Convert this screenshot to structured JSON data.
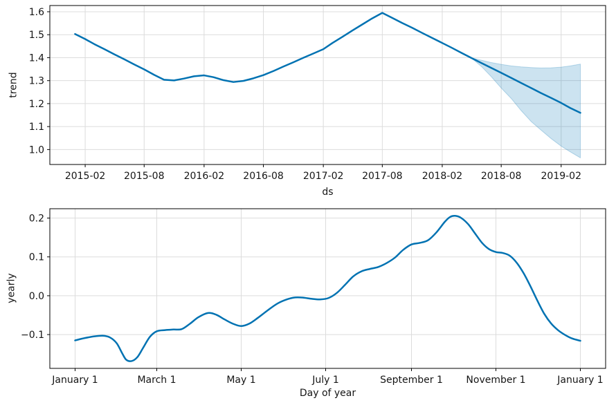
{
  "figure": {
    "background": "#ffffff",
    "line_color": "#0072B2",
    "band_fill": "rgba(0,114,178,0.2)",
    "band_edge": "rgba(0,114,178,0.25)",
    "grid_color": "#dcdcdc",
    "spine_color": "#000000",
    "tick_color": "#000000",
    "text_color": "#151515"
  },
  "chart_data": [
    {
      "id": "trend",
      "type": "line",
      "title": "",
      "xlabel": "ds",
      "ylabel": "trend",
      "x_unit": "days since 2015-01-01, monthly points from 2015-01 to 2019-04",
      "xlim": [
        -77.5,
        1628.5
      ],
      "ylim": [
        0.935,
        1.627
      ],
      "grid": true,
      "legend": null,
      "x_ticks": [
        {
          "x": 31,
          "label": "2015-02"
        },
        {
          "x": 212,
          "label": "2015-08"
        },
        {
          "x": 396,
          "label": "2016-02"
        },
        {
          "x": 578,
          "label": "2016-08"
        },
        {
          "x": 762,
          "label": "2017-02"
        },
        {
          "x": 943,
          "label": "2017-08"
        },
        {
          "x": 1127,
          "label": "2018-02"
        },
        {
          "x": 1308,
          "label": "2018-08"
        },
        {
          "x": 1492,
          "label": "2019-02"
        }
      ],
      "y_ticks": [
        {
          "y": 1.0,
          "label": "1.0"
        },
        {
          "y": 1.1,
          "label": "1.1"
        },
        {
          "y": 1.2,
          "label": "1.2"
        },
        {
          "y": 1.3,
          "label": "1.3"
        },
        {
          "y": 1.4,
          "label": "1.4"
        },
        {
          "y": 1.5,
          "label": "1.5"
        },
        {
          "y": 1.6,
          "label": "1.6"
        }
      ],
      "series": [
        {
          "name": "trend",
          "smooth": false,
          "x": [
            0,
            31,
            59,
            90,
            120,
            151,
            181,
            212,
            243,
            273,
            304,
            334,
            365,
            396,
            425,
            456,
            486,
            517,
            547,
            578,
            609,
            639,
            670,
            700,
            731,
            762,
            790,
            821,
            851,
            882,
            912,
            943,
            974,
            1004,
            1035,
            1065,
            1096,
            1127,
            1155,
            1186,
            1216,
            1247,
            1277,
            1308,
            1339,
            1369,
            1400,
            1430,
            1461,
            1492,
            1520,
            1551
          ],
          "y": [
            1.503,
            1.481,
            1.459,
            1.437,
            1.415,
            1.393,
            1.371,
            1.349,
            1.325,
            1.304,
            1.301,
            1.309,
            1.319,
            1.323,
            1.315,
            1.302,
            1.294,
            1.299,
            1.31,
            1.324,
            1.342,
            1.361,
            1.38,
            1.399,
            1.418,
            1.437,
            1.464,
            1.491,
            1.518,
            1.545,
            1.571,
            1.595,
            1.573,
            1.551,
            1.53,
            1.508,
            1.486,
            1.464,
            1.444,
            1.421,
            1.399,
            1.377,
            1.356,
            1.334,
            1.312,
            1.29,
            1.268,
            1.246,
            1.225,
            1.203,
            1.181,
            1.16
          ]
        }
      ],
      "band": {
        "name": "uncertainty-interval",
        "x": [
          1216,
          1247,
          1277,
          1308,
          1339,
          1369,
          1400,
          1430,
          1461,
          1492,
          1520,
          1551
        ],
        "upper": [
          1.399,
          1.389,
          1.379,
          1.371,
          1.364,
          1.36,
          1.357,
          1.355,
          1.356,
          1.359,
          1.364,
          1.372
        ],
        "lower": [
          1.399,
          1.362,
          1.318,
          1.268,
          1.222,
          1.17,
          1.122,
          1.085,
          1.048,
          1.015,
          0.99,
          0.964
        ]
      }
    },
    {
      "id": "yearly",
      "type": "line",
      "title": "",
      "xlabel": "Day of year",
      "ylabel": "yearly",
      "x_unit": "day of year",
      "xlim": [
        -17.25,
        384.25
      ],
      "ylim": [
        -0.187,
        0.224
      ],
      "grid": true,
      "legend": null,
      "x_ticks": [
        {
          "x": 1,
          "label": "January 1"
        },
        {
          "x": 60,
          "label": "March 1"
        },
        {
          "x": 121,
          "label": "May 1"
        },
        {
          "x": 182,
          "label": "July 1"
        },
        {
          "x": 244,
          "label": "September 1"
        },
        {
          "x": 305,
          "label": "November 1"
        },
        {
          "x": 366,
          "label": "January 1"
        }
      ],
      "y_ticks": [
        {
          "y": -0.1,
          "label": "−0.1"
        },
        {
          "y": 0.0,
          "label": "0.0"
        },
        {
          "y": 0.1,
          "label": "0.1"
        },
        {
          "y": 0.2,
          "label": "0.2"
        }
      ],
      "series": [
        {
          "name": "yearly",
          "smooth": true,
          "x": [
            1,
            8,
            15,
            21,
            26,
            31,
            35,
            38,
            42,
            46,
            50,
            55,
            60,
            66,
            72,
            78,
            84,
            90,
            97,
            103,
            109,
            115,
            121,
            127,
            133,
            140,
            147,
            154,
            160,
            166,
            172,
            178,
            184,
            190,
            196,
            202,
            208,
            214,
            220,
            226,
            232,
            238,
            244,
            250,
            256,
            262,
            268,
            272,
            276,
            280,
            285,
            290,
            295,
            300,
            305,
            310,
            315,
            320,
            325,
            330,
            335,
            340,
            345,
            350,
            355,
            360,
            366
          ],
          "y": [
            -0.115,
            -0.109,
            -0.1045,
            -0.103,
            -0.107,
            -0.122,
            -0.148,
            -0.165,
            -0.168,
            -0.158,
            -0.135,
            -0.106,
            -0.0915,
            -0.0885,
            -0.087,
            -0.086,
            -0.072,
            -0.0555,
            -0.0445,
            -0.049,
            -0.061,
            -0.072,
            -0.078,
            -0.0715,
            -0.057,
            -0.038,
            -0.0205,
            -0.0095,
            -0.0045,
            -0.005,
            -0.008,
            -0.0095,
            -0.006,
            0.007,
            0.028,
            0.05,
            0.063,
            0.069,
            0.074,
            0.084,
            0.098,
            0.118,
            0.132,
            0.136,
            0.143,
            0.163,
            0.19,
            0.203,
            0.2055,
            0.2,
            0.184,
            0.16,
            0.136,
            0.12,
            0.1125,
            0.11,
            0.103,
            0.085,
            0.058,
            0.024,
            -0.013,
            -0.047,
            -0.072,
            -0.089,
            -0.101,
            -0.11,
            -0.116
          ]
        }
      ],
      "band": null
    }
  ]
}
